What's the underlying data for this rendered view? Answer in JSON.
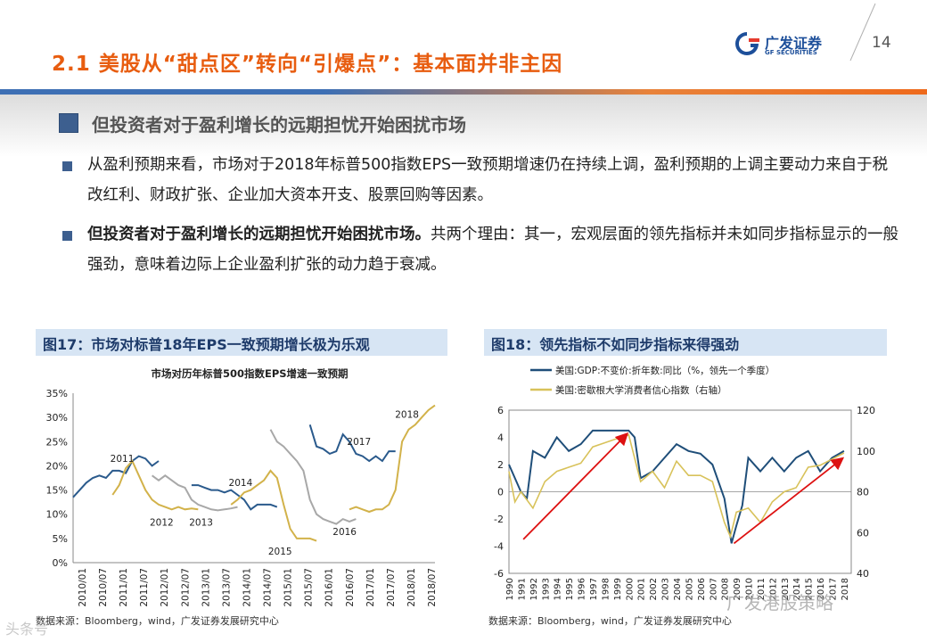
{
  "header": {
    "title": "2.1 美股从“甜点区”转向“引爆点”：基本面并非主因",
    "logo_cn": "广发证券",
    "logo_en": "GF SECURITIES",
    "page_number": "14",
    "colors": {
      "accent": "#e85d10",
      "brand_blue": "#1d4f9a",
      "section_blue": "#3d5f8f"
    }
  },
  "section": {
    "heading": "但投资者对于盈利增长的远期担忧开始困扰市场"
  },
  "bullets": [
    {
      "bold": "",
      "text": "从盈利预期来看，市场对于2018年标普500指数EPS一致预期增速仍在持续上调，盈利预期的上调主要动力来自于税改红利、财政扩张、企业加大资本开支、股票回购等因素。"
    },
    {
      "bold": "但投资者对于盈利增长的远期担忧开始困扰市场。",
      "text": "共两个理由：其一，宏观层面的领先指标并未如同步指标显示的一般强劲，意味着边际上企业盈利扩张的动力趋于衰减。"
    }
  ],
  "figures": [
    {
      "header": "图17：市场对标普18年EPS一致预期增长极为乐观",
      "source": "数据来源：Bloomberg，wind，广发证券发展研究中心"
    },
    {
      "header": "图18：领先指标不如同步指标来得强劲",
      "source": "数据来源：Bloomberg，wind，广发证券发展研究中心"
    }
  ],
  "chart_data": [
    {
      "type": "line",
      "title": "市场对历年标普500指数EPS增速一致预期",
      "xlabel": "",
      "ylabel": "",
      "ylim": [
        0,
        35
      ],
      "y_ticks": [
        "0%",
        "5%",
        "10%",
        "15%",
        "20%",
        "25%",
        "30%",
        "35%"
      ],
      "x_ticks": [
        "2010/01",
        "2010/07",
        "2011/01",
        "2011/07",
        "2012/01",
        "2012/07",
        "2013/01",
        "2013/07",
        "2014/01",
        "2014/07",
        "2015/01",
        "2015/07",
        "2016/01",
        "2016/07",
        "2017/01",
        "2017/07",
        "2018/01",
        "2018/07"
      ],
      "grid": false,
      "series": [
        {
          "name": "2011",
          "color": "#2a5a8c",
          "x": [
            0,
            2,
            4,
            6,
            8,
            10,
            12,
            14,
            16,
            18,
            20,
            22,
            24,
            26
          ],
          "y": [
            13.5,
            15,
            16.5,
            17.5,
            18,
            17.5,
            19,
            19,
            18.5,
            21,
            22,
            21.5,
            20,
            21
          ]
        },
        {
          "name": "2012",
          "color": "#d2b24a",
          "x": [
            12,
            14,
            16,
            18,
            20,
            22,
            24,
            26,
            28,
            30,
            32,
            34,
            36,
            38
          ],
          "y": [
            14,
            16,
            19.5,
            21,
            18,
            15,
            13,
            12,
            11.5,
            11,
            11.5,
            11,
            11.2,
            11
          ]
        },
        {
          "name": "2013",
          "color": "#a8a8a8",
          "x": [
            24,
            26,
            28,
            30,
            32,
            34,
            36,
            38,
            40,
            42,
            44,
            46,
            48,
            50
          ],
          "y": [
            18,
            17,
            18,
            17,
            16,
            15.5,
            13,
            12,
            11.5,
            11,
            10.8,
            11,
            11.2,
            11.5
          ]
        },
        {
          "name": "2014",
          "color": "#2a5a8c",
          "x": [
            36,
            38,
            40,
            42,
            44,
            46,
            48,
            50,
            52,
            54,
            56,
            58,
            60,
            62
          ],
          "y": [
            16,
            16,
            15.5,
            15,
            15,
            14.5,
            15,
            14,
            13,
            11,
            12,
            12,
            12,
            11.5
          ]
        },
        {
          "name": "2015",
          "color": "#d2b24a",
          "x": [
            48,
            50,
            52,
            54,
            56,
            58,
            60,
            62,
            64,
            66,
            68,
            70,
            72,
            74
          ],
          "y": [
            12,
            13,
            14.5,
            15,
            16,
            17,
            19,
            17.5,
            12,
            7,
            5,
            5,
            5,
            4.5
          ]
        },
        {
          "name": "2016",
          "color": "#a8a8a8",
          "x": [
            60,
            62,
            64,
            66,
            68,
            70,
            72,
            74,
            76,
            78,
            80,
            82,
            84,
            86
          ],
          "y": [
            27.5,
            25,
            24,
            22.5,
            21,
            19,
            13,
            10,
            9,
            8.5,
            8,
            9,
            8.5,
            9
          ]
        },
        {
          "name": "2017",
          "color": "#2a5a8c",
          "x": [
            72,
            74,
            76,
            78,
            80,
            82,
            84,
            86,
            88,
            90,
            92,
            94,
            96,
            98
          ],
          "y": [
            28.5,
            24,
            23.5,
            22.5,
            23,
            26.5,
            25,
            22.5,
            22,
            21,
            22,
            21,
            23,
            23
          ]
        },
        {
          "name": "2018",
          "color": "#d2b24a",
          "x": [
            84,
            86,
            88,
            90,
            92,
            94,
            96,
            98,
            100,
            102,
            104,
            106,
            108,
            110
          ],
          "y": [
            11,
            11.5,
            11,
            10.5,
            11,
            11,
            12,
            15,
            25,
            27.5,
            28.5,
            30,
            31.5,
            32.5
          ]
        }
      ]
    },
    {
      "type": "line",
      "title": "",
      "legend": [
        "美国:GDP:不变价:折年数:同比（%，领先一个季度）",
        "美国:密歇根大学消费者信心指数（右轴）"
      ],
      "legend_position": "top-left",
      "left_ylim": [
        -6,
        6
      ],
      "left_ticks": [
        "-6",
        "-4",
        "-2",
        "0",
        "2",
        "4",
        "6"
      ],
      "right_ylim": [
        40,
        120
      ],
      "right_ticks": [
        "40",
        "60",
        "80",
        "100",
        "120"
      ],
      "x_ticks": [
        "1990",
        "1991",
        "1992",
        "1993",
        "1994",
        "1995",
        "1996",
        "1997",
        "1998",
        "1999",
        "2000",
        "2001",
        "2002",
        "2003",
        "2004",
        "2005",
        "2006",
        "2007",
        "2008",
        "2009",
        "2010",
        "2011",
        "2012",
        "2013",
        "2014",
        "2015",
        "2016",
        "2017",
        "2018"
      ],
      "series": [
        {
          "name": "美国:GDP:不变价:折年数:同比（%，领先一个季度）",
          "color": "#1f4e79",
          "axis": "left",
          "x": [
            1990,
            1991,
            1991.5,
            1992,
            1993,
            1994,
            1995,
            1996,
            1997,
            1998,
            1999,
            2000,
            2000.5,
            2001,
            2002,
            2003,
            2004,
            2005,
            2006,
            2007,
            2008,
            2008.6,
            2009,
            2009.5,
            2010,
            2011,
            2012,
            2013,
            2014,
            2015,
            2016,
            2017,
            2018
          ],
          "y": [
            2,
            0,
            -0.5,
            3,
            2.5,
            4,
            3,
            3.5,
            4.5,
            4.5,
            4.5,
            4.5,
            4,
            1,
            1.5,
            2.5,
            3.5,
            3,
            2.8,
            2,
            -0.5,
            -3.8,
            -2.5,
            -1,
            2.5,
            1.5,
            2.5,
            1.5,
            2.5,
            3,
            1.5,
            2.5,
            3
          ]
        },
        {
          "name": "美国:密歇根大学消费者信心指数（右轴）",
          "color": "#d8c25a",
          "axis": "right",
          "x": [
            1990,
            1990.5,
            1991,
            1992,
            1993,
            1994,
            1995,
            1996,
            1997,
            1998,
            1999,
            2000,
            2001,
            2002,
            2003,
            2004,
            2005,
            2006,
            2007,
            2008,
            2008.5,
            2009,
            2010,
            2011,
            2012,
            2013,
            2014,
            2015,
            2016,
            2017,
            2018
          ],
          "y": [
            90,
            75,
            80,
            72,
            85,
            90,
            92,
            94,
            102,
            104,
            106,
            108,
            85,
            90,
            82,
            95,
            88,
            88,
            85,
            65,
            58,
            70,
            72,
            65,
            75,
            80,
            82,
            92,
            93,
            96,
            99
          ]
        }
      ],
      "annotations": [
        "trend-arrow-1991-1999",
        "trend-arrow-2009-2018"
      ]
    }
  ],
  "watermarks": {
    "right": "广发港股策略",
    "left": "头条号"
  }
}
